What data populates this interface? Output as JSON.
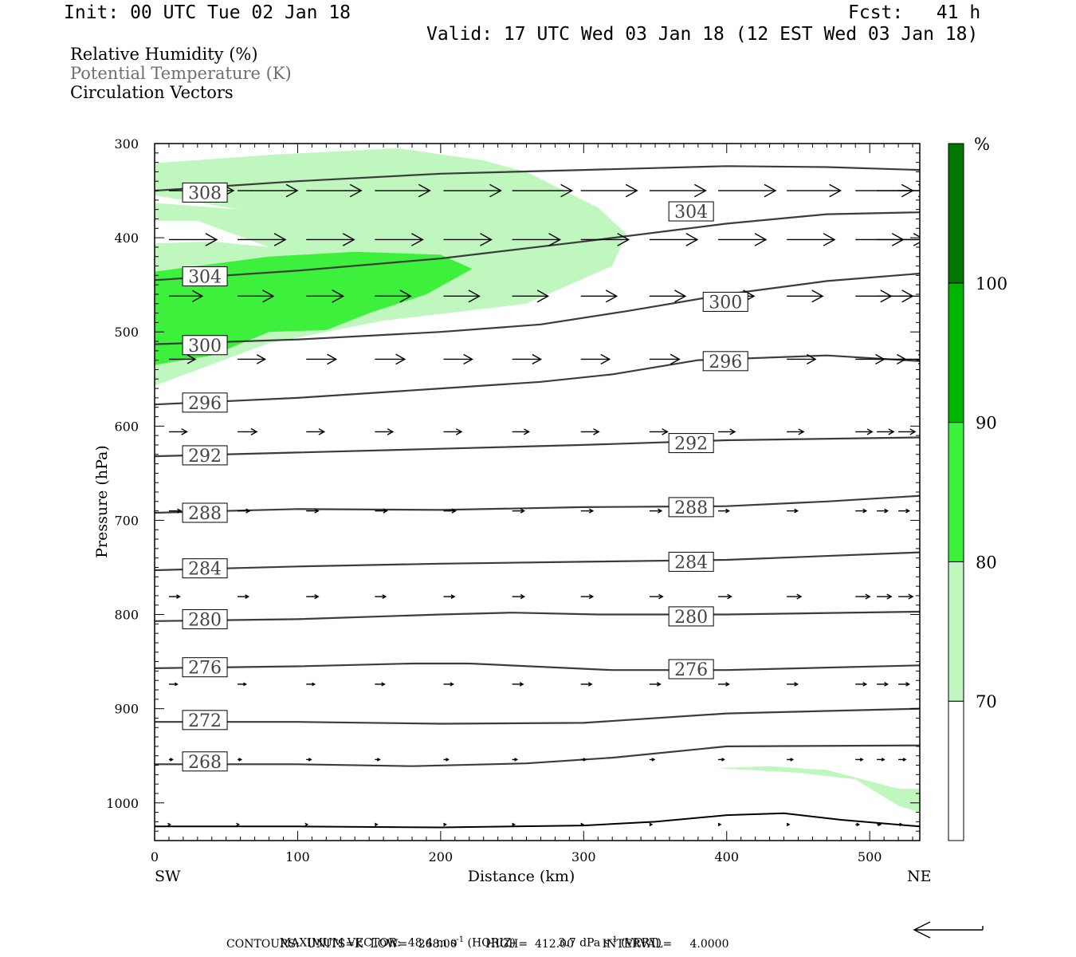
{
  "header": {
    "init": "Init: 00 UTC Tue 02 Jan 18",
    "fcst": "Fcst:   41 h",
    "valid": "Valid: 17 UTC Wed 03 Jan 18 (12 EST Wed 03 Jan 18)"
  },
  "legend": {
    "line1": "Relative Humidity (%)",
    "line2": "Potential Temperature (K)",
    "line3": "Circulation Vectors"
  },
  "footer": {
    "max_vector_label": "MAXIMUM VECTOR:",
    "max_vector_horiz": "48.4 m s",
    "horiz_suffix": " (HORIZ)",
    "max_vector_vert": "3.7 dPa s",
    "vert_suffix": " (VERT)",
    "exp": "-1",
    "contours": "CONTOURS:  UNITS=K  LOW=   268.00        HIGH=  412.00        INTERVAL=     4.0000"
  },
  "colors": {
    "rh_70_80": "#bff7bf",
    "rh_80_90": "#3cf03c",
    "rh_90_100": "#00b400",
    "rh_100": "#007800",
    "contour": "#3c3c3c",
    "vector": "#000000"
  },
  "chart_data": {
    "type": "cross-section",
    "xlabel": "Distance (km)",
    "ylabel": "Pressure (hPa)",
    "x_left_label": "SW",
    "x_right_label": "NE",
    "xlim": [
      0,
      535
    ],
    "ylim": [
      1040,
      300
    ],
    "x_ticks": [
      0,
      100,
      200,
      300,
      400,
      500
    ],
    "y_ticks": [
      300,
      400,
      500,
      600,
      700,
      800,
      900,
      1000
    ],
    "colorbar": {
      "unit": "%",
      "levels": [
        70,
        80,
        90,
        100
      ],
      "labels": [
        "70",
        "80",
        "90",
        "100"
      ]
    },
    "rh_fill": [
      {
        "level": "70-80",
        "polygon": [
          [
            0,
            321
          ],
          [
            80,
            312
          ],
          [
            170,
            305
          ],
          [
            230,
            318
          ],
          [
            260,
            330
          ],
          [
            310,
            368
          ],
          [
            330,
            396
          ],
          [
            320,
            430
          ],
          [
            260,
            470
          ],
          [
            160,
            488
          ],
          [
            80,
            512
          ],
          [
            0,
            557
          ],
          [
            0,
            527
          ],
          [
            0,
            406
          ],
          [
            40,
            404
          ],
          [
            80,
            410
          ],
          [
            30,
            382
          ],
          [
            0,
            382
          ],
          [
            0,
            363
          ],
          [
            60,
            370
          ],
          [
            0,
            355
          ]
        ]
      },
      {
        "level": "70-80",
        "polygon": [
          [
            393,
            963
          ],
          [
            450,
            968
          ],
          [
            490,
            975
          ],
          [
            520,
            1003
          ],
          [
            535,
            1010
          ],
          [
            535,
            985
          ],
          [
            520,
            985
          ],
          [
            470,
            965
          ],
          [
            430,
            961
          ]
        ]
      },
      {
        "level": "80-90",
        "polygon": [
          [
            0,
            436
          ],
          [
            80,
            420
          ],
          [
            140,
            415
          ],
          [
            200,
            418
          ],
          [
            222,
            433
          ],
          [
            190,
            460
          ],
          [
            150,
            480
          ],
          [
            120,
            498
          ],
          [
            80,
            500
          ],
          [
            40,
            525
          ],
          [
            0,
            535
          ]
        ]
      }
    ],
    "contours": [
      {
        "value": 308,
        "x": [
          0,
          100,
          200,
          300,
          400,
          470,
          535
        ],
        "p": [
          350,
          340,
          332,
          328,
          324,
          325,
          328
        ]
      },
      {
        "value": 304,
        "x": [
          0,
          100,
          200,
          300,
          400,
          470,
          535
        ],
        "p": [
          445,
          435,
          422,
          404,
          385,
          375,
          373
        ]
      },
      {
        "value": 300,
        "x": [
          0,
          100,
          200,
          270,
          330,
          400,
          470,
          535
        ],
        "p": [
          513,
          508,
          500,
          492,
          478,
          460,
          446,
          438
        ]
      },
      {
        "value": 296,
        "x": [
          0,
          100,
          200,
          270,
          320,
          380,
          470,
          535
        ],
        "p": [
          577,
          570,
          560,
          553,
          545,
          530,
          525,
          531
        ]
      },
      {
        "value": 292,
        "x": [
          0,
          100,
          200,
          300,
          400,
          535
        ],
        "p": [
          632,
          628,
          624,
          620,
          615,
          612
        ]
      },
      {
        "value": 288,
        "x": [
          0,
          100,
          200,
          300,
          400,
          470,
          535
        ],
        "p": [
          692,
          688,
          689,
          686,
          685,
          680,
          674
        ]
      },
      {
        "value": 284,
        "x": [
          0,
          100,
          200,
          300,
          400,
          535
        ],
        "p": [
          753,
          749,
          746,
          744,
          742,
          734
        ]
      },
      {
        "value": 280,
        "x": [
          0,
          100,
          200,
          250,
          310,
          400,
          535
        ],
        "p": [
          807,
          805,
          800,
          798,
          800,
          800,
          797
        ]
      },
      {
        "value": 276,
        "x": [
          0,
          100,
          180,
          220,
          320,
          400,
          535
        ],
        "p": [
          857,
          855,
          852,
          852,
          859,
          859,
          854
        ]
      },
      {
        "value": 272,
        "x": [
          0,
          100,
          200,
          300,
          400,
          535
        ],
        "p": [
          914,
          914,
          916,
          915,
          905,
          900
        ]
      },
      {
        "value": 268,
        "x": [
          0,
          100,
          180,
          260,
          320,
          400,
          535
        ],
        "p": [
          959,
          959,
          961,
          958,
          952,
          940,
          939
        ]
      }
    ],
    "contour_labels": [
      {
        "value": "308",
        "x": 24,
        "p": 352
      },
      {
        "value": "304",
        "x": 364,
        "p": 372
      },
      {
        "value": "304",
        "x": 24,
        "p": 441
      },
      {
        "value": "300",
        "x": 388,
        "p": 468
      },
      {
        "value": "300",
        "x": 24,
        "p": 514
      },
      {
        "value": "296",
        "x": 388,
        "p": 531
      },
      {
        "value": "296",
        "x": 24,
        "p": 575
      },
      {
        "value": "292",
        "x": 364,
        "p": 618
      },
      {
        "value": "292",
        "x": 24,
        "p": 631
      },
      {
        "value": "288",
        "x": 364,
        "p": 686
      },
      {
        "value": "288",
        "x": 24,
        "p": 692
      },
      {
        "value": "284",
        "x": 364,
        "p": 744
      },
      {
        "value": "284",
        "x": 24,
        "p": 751
      },
      {
        "value": "280",
        "x": 364,
        "p": 802
      },
      {
        "value": "280",
        "x": 24,
        "p": 805
      },
      {
        "value": "276",
        "x": 364,
        "p": 858
      },
      {
        "value": "276",
        "x": 24,
        "p": 856
      },
      {
        "value": "272",
        "x": 24,
        "p": 912
      },
      {
        "value": "268",
        "x": 24,
        "p": 956
      }
    ],
    "surface": {
      "x": [
        0,
        100,
        200,
        300,
        350,
        400,
        440,
        480,
        535
      ],
      "p": [
        1025,
        1025,
        1026,
        1024,
        1020,
        1013,
        1011,
        1018,
        1025
      ]
    },
    "vector_rows": [
      {
        "p": 350,
        "u": [
          54,
          50,
          46,
          46,
          48,
          50,
          47,
          47,
          48,
          45,
          48,
          44,
          50
        ]
      },
      {
        "p": 402,
        "u": [
          40,
          40,
          40,
          40,
          40,
          40,
          40,
          40,
          40,
          40,
          40,
          40,
          38
        ]
      },
      {
        "p": 462,
        "u": [
          28,
          30,
          31,
          30,
          30,
          30,
          30,
          30,
          30,
          30,
          30,
          30,
          30
        ]
      },
      {
        "p": 529,
        "u": [
          22,
          23,
          25,
          25,
          24,
          24,
          24,
          25,
          24,
          24,
          24,
          24,
          24
        ]
      },
      {
        "p": 606,
        "u": [
          15,
          16,
          15,
          15,
          15,
          14,
          15,
          15,
          14,
          14,
          14,
          14,
          14
        ]
      },
      {
        "p": 690,
        "u": [
          10,
          10,
          10,
          10,
          10,
          10,
          10,
          10,
          9,
          9,
          9,
          9,
          9
        ]
      },
      {
        "p": 781,
        "u": [
          9,
          9,
          10,
          9,
          9,
          10,
          10,
          11,
          11,
          12,
          12,
          12,
          12
        ]
      },
      {
        "p": 874,
        "u": [
          7,
          7,
          7,
          8,
          8,
          9,
          9,
          9,
          9,
          9,
          9,
          9,
          9
        ]
      },
      {
        "p": 954,
        "u": [
          3,
          3,
          4,
          4,
          4,
          4,
          4,
          4,
          5,
          5,
          6,
          6,
          6
        ]
      },
      {
        "p": 1023,
        "u": [
          1,
          1,
          1,
          2,
          2,
          2,
          2,
          2,
          2,
          2,
          3,
          3,
          3
        ]
      }
    ],
    "vector_x": [
      10,
      58,
      106,
      154,
      202,
      250,
      298,
      346,
      394,
      442,
      490,
      505,
      520
    ]
  }
}
